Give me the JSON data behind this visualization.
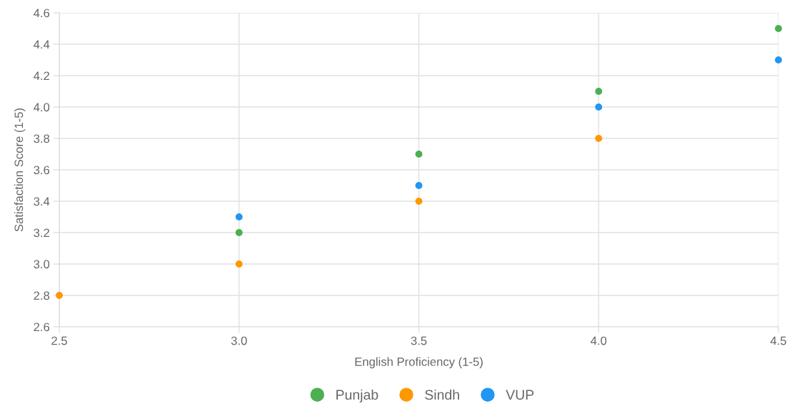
{
  "chart_data": {
    "type": "scatter",
    "xlabel": "English Proficiency (1-5)",
    "ylabel": "Satisfaction Score (1-5)",
    "series": [
      {
        "name": "Punjab",
        "color": "#4caf50",
        "x": [
          3.0,
          3.5,
          4.0,
          4.5
        ],
        "values": [
          3.2,
          3.7,
          4.1,
          4.5
        ]
      },
      {
        "name": "Sindh",
        "color": "#ff9800",
        "x": [
          2.5,
          3.0,
          3.5,
          4.0
        ],
        "values": [
          2.8,
          3.0,
          3.4,
          3.8
        ]
      },
      {
        "name": "VUP",
        "color": "#2196f3",
        "x": [
          3.0,
          3.5,
          4.0,
          4.5
        ],
        "values": [
          3.3,
          3.5,
          4.0,
          4.3
        ]
      }
    ],
    "xlim": [
      2.5,
      4.5
    ],
    "xticks": [
      2.5,
      {
        "value": 3,
        "label": "3.0"
      },
      3.5,
      {
        "value": 4,
        "label": "4.0"
      },
      4.5
    ],
    "ylim": [
      2.6,
      4.6
    ],
    "yticks": [
      2.6,
      2.8,
      {
        "value": 3,
        "label": "3.0"
      },
      3.2,
      3.4,
      3.6,
      3.8,
      {
        "value": 4,
        "label": "4.0"
      },
      4.2,
      4.4,
      4.6
    ],
    "grid": true,
    "legend": "bottom"
  }
}
